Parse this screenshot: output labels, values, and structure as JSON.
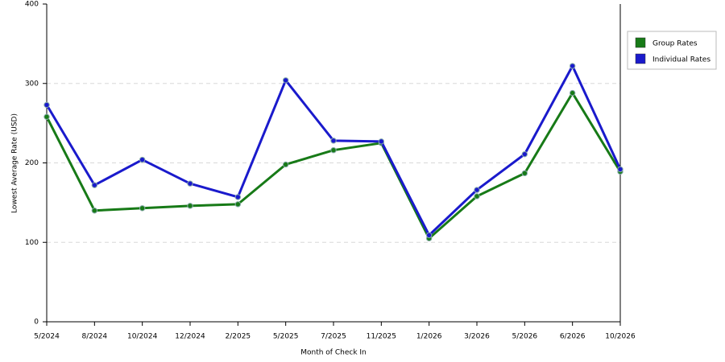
{
  "chart_data": {
    "type": "line",
    "x_label": "Month of Check In",
    "y_label": "Lowest Average Rate (USD)",
    "categories": [
      "5/2024",
      "8/2024",
      "10/2024",
      "12/2024",
      "2/2025",
      "5/2025",
      "7/2025",
      "11/2025",
      "1/2026",
      "3/2026",
      "5/2026",
      "6/2026",
      "10/2026"
    ],
    "series": [
      {
        "name": "Group Rates",
        "color": "#177a17",
        "values": [
          258,
          140,
          143,
          146,
          148,
          198,
          216,
          225,
          105,
          158,
          187,
          288,
          189
        ]
      },
      {
        "name": "Individual Rates",
        "color": "#1a1acc",
        "values": [
          273,
          172,
          204,
          174,
          157,
          304,
          228,
          227,
          109,
          166,
          211,
          322,
          192
        ]
      }
    ],
    "ylim": [
      0,
      400
    ],
    "yticks": [
      0,
      100,
      200,
      300,
      400
    ],
    "grid": true,
    "legend": "right"
  }
}
